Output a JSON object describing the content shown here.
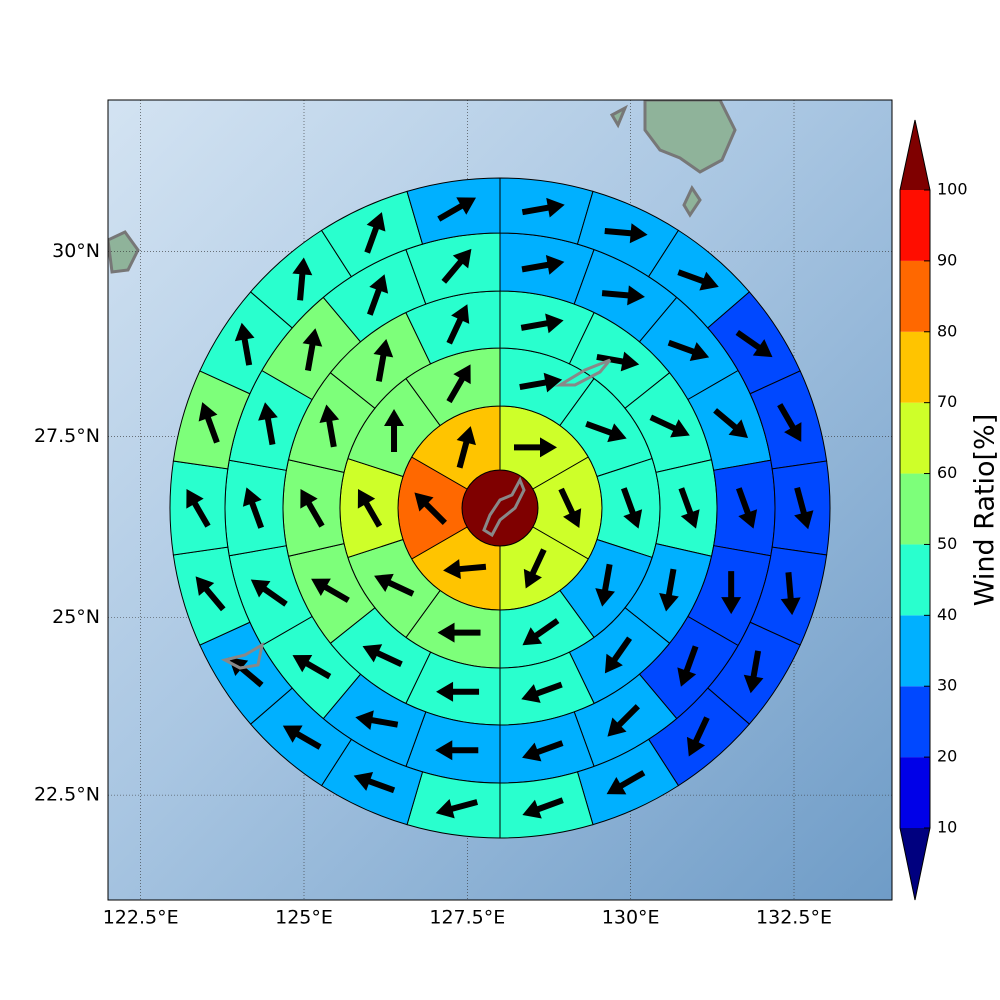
{
  "chart_data": {
    "type": "polar",
    "xlim": [
      122,
      134
    ],
    "ylim": [
      21,
      32
    ],
    "xticks": [
      {
        "value": 122.5,
        "label": "122.5°E"
      },
      {
        "value": 125,
        "label": "125°E"
      },
      {
        "value": 127.5,
        "label": "127.5°E"
      },
      {
        "value": 130,
        "label": "130°E"
      },
      {
        "value": 132.5,
        "label": "132.5°E"
      }
    ],
    "yticks": [
      {
        "value": 22.5,
        "label": "22.5°N"
      },
      {
        "value": 25,
        "label": "25°N"
      },
      {
        "value": 27.5,
        "label": "27.5°N"
      },
      {
        "value": 30,
        "label": "30°N"
      }
    ],
    "grid": true,
    "center": {
      "value": 105
    },
    "rings": [
      {
        "values": [
          65,
          65,
          65,
          75,
          85,
          75
        ],
        "directions": [
          90,
          155,
          205,
          265,
          315,
          15
        ]
      },
      {
        "values": [
          45,
          45,
          45,
          35,
          45,
          55,
          55,
          65,
          55,
          55
        ],
        "directions": [
          80,
          110,
          160,
          190,
          235,
          270,
          295,
          330,
          0,
          30
        ]
      },
      {
        "values": [
          45,
          45,
          45,
          45,
          35,
          35,
          45,
          45,
          45,
          55,
          55,
          55,
          55,
          45
        ],
        "directions": [
          80,
          100,
          115,
          160,
          190,
          215,
          250,
          270,
          295,
          300,
          330,
          350,
          10,
          25
        ]
      },
      {
        "values": [
          35,
          35,
          35,
          35,
          25,
          25,
          25,
          35,
          35,
          35,
          35,
          45,
          45,
          45,
          45,
          55,
          45,
          45
        ],
        "directions": [
          80,
          95,
          110,
          130,
          160,
          180,
          200,
          225,
          250,
          270,
          280,
          300,
          305,
          340,
          350,
          10,
          20,
          40
        ]
      },
      {
        "values": [
          35,
          35,
          35,
          25,
          25,
          25,
          25,
          25,
          25,
          35,
          45,
          45,
          35,
          35,
          35,
          45,
          45,
          55,
          45,
          45,
          45,
          35
        ],
        "directions": [
          80,
          95,
          110,
          125,
          150,
          165,
          175,
          190,
          205,
          240,
          250,
          255,
          290,
          300,
          310,
          320,
          330,
          340,
          350,
          5,
          20,
          60
        ]
      }
    ],
    "colorbar": {
      "label": "Wind Ratio[%]",
      "ticks": [
        10,
        20,
        30,
        40,
        50,
        60,
        70,
        80,
        90,
        100
      ],
      "colors": [
        "#0000e8",
        "#0048ff",
        "#00b0ff",
        "#29ffce",
        "#7dff7a",
        "#ceff29",
        "#ffc400",
        "#ff6800",
        "#ff0d00"
      ],
      "under": "#00007f",
      "over": "#7f0000"
    }
  }
}
